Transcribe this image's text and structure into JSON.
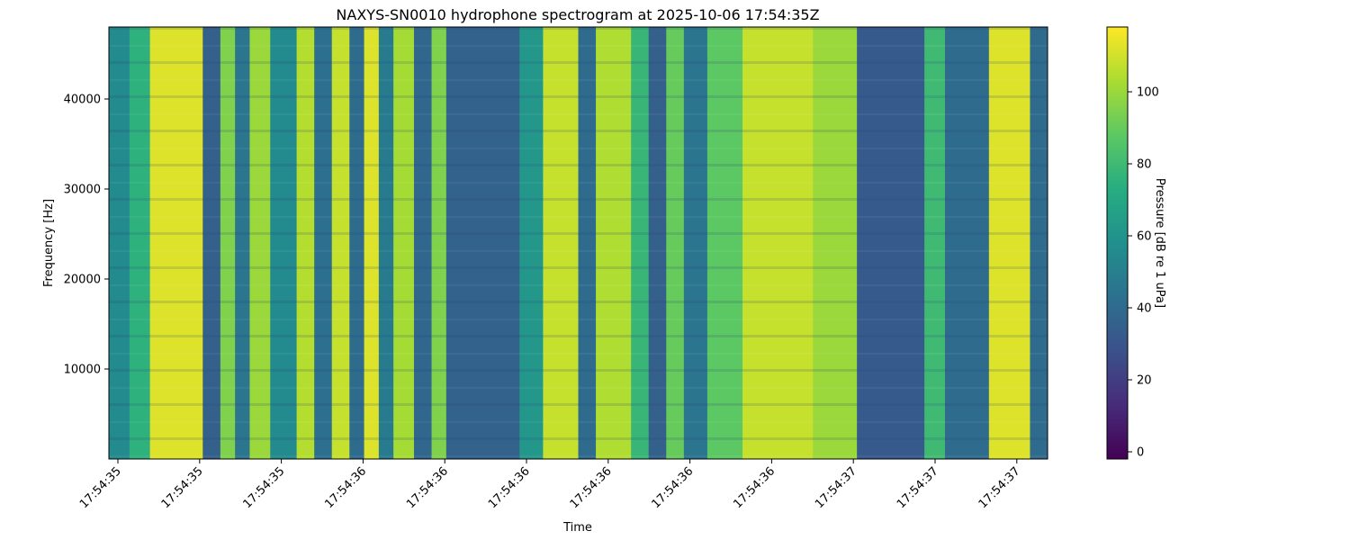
{
  "chart_data": {
    "type": "heatmap",
    "title": "NAXYS-SN0010 hydrophone spectrogram at 2025-10-06 17:54:35Z",
    "xlabel": "Time",
    "ylabel": "Frequency [Hz]",
    "colorbar_label": "Pressure [dB re 1 uPa]",
    "colormap": "viridis",
    "x_tick_labels": [
      "17:54:35",
      "17:54:35",
      "17:54:35",
      "17:54:36",
      "17:54:36",
      "17:54:36",
      "17:54:36",
      "17:54:36",
      "17:54:36",
      "17:54:37",
      "17:54:37",
      "17:54:37"
    ],
    "y_ticks": [
      10000,
      20000,
      30000,
      40000
    ],
    "ylim": [
      0,
      48000
    ],
    "color_ticks": [
      0,
      20,
      40,
      60,
      80,
      100
    ],
    "clim": [
      -2,
      118
    ],
    "time_columns": [
      {
        "start": 0.0,
        "end": 0.07,
        "level": 55
      },
      {
        "start": 0.07,
        "end": 0.14,
        "level": 75
      },
      {
        "start": 0.14,
        "end": 0.32,
        "level": 112
      },
      {
        "start": 0.32,
        "end": 0.38,
        "level": 35
      },
      {
        "start": 0.38,
        "end": 0.43,
        "level": 95
      },
      {
        "start": 0.43,
        "end": 0.48,
        "level": 45
      },
      {
        "start": 0.48,
        "end": 0.55,
        "level": 100
      },
      {
        "start": 0.55,
        "end": 0.64,
        "level": 55
      },
      {
        "start": 0.64,
        "end": 0.7,
        "level": 105
      },
      {
        "start": 0.7,
        "end": 0.76,
        "level": 42
      },
      {
        "start": 0.76,
        "end": 0.82,
        "level": 108
      },
      {
        "start": 0.82,
        "end": 0.87,
        "level": 40
      },
      {
        "start": 0.87,
        "end": 0.92,
        "level": 112
      },
      {
        "start": 0.92,
        "end": 0.97,
        "level": 48
      },
      {
        "start": 0.97,
        "end": 1.04,
        "level": 102
      },
      {
        "start": 1.04,
        "end": 1.1,
        "level": 38
      },
      {
        "start": 1.1,
        "end": 1.15,
        "level": 95
      },
      {
        "start": 1.15,
        "end": 1.4,
        "level": 36
      },
      {
        "start": 1.4,
        "end": 1.48,
        "level": 62
      },
      {
        "start": 1.48,
        "end": 1.6,
        "level": 108
      },
      {
        "start": 1.6,
        "end": 1.66,
        "level": 40
      },
      {
        "start": 1.66,
        "end": 1.78,
        "level": 104
      },
      {
        "start": 1.78,
        "end": 1.84,
        "level": 78
      },
      {
        "start": 1.84,
        "end": 1.9,
        "level": 35
      },
      {
        "start": 1.9,
        "end": 1.96,
        "level": 90
      },
      {
        "start": 1.96,
        "end": 2.04,
        "level": 45
      },
      {
        "start": 2.04,
        "end": 2.16,
        "level": 88
      },
      {
        "start": 2.16,
        "end": 2.4,
        "level": 108
      },
      {
        "start": 2.4,
        "end": 2.55,
        "level": 100
      },
      {
        "start": 2.55,
        "end": 2.78,
        "level": 32
      },
      {
        "start": 2.78,
        "end": 2.85,
        "level": 80
      },
      {
        "start": 2.85,
        "end": 3.0,
        "level": 40
      },
      {
        "start": 3.0,
        "end": 3.14,
        "level": 112
      },
      {
        "start": 3.14,
        "end": 3.2,
        "level": 40
      }
    ]
  }
}
